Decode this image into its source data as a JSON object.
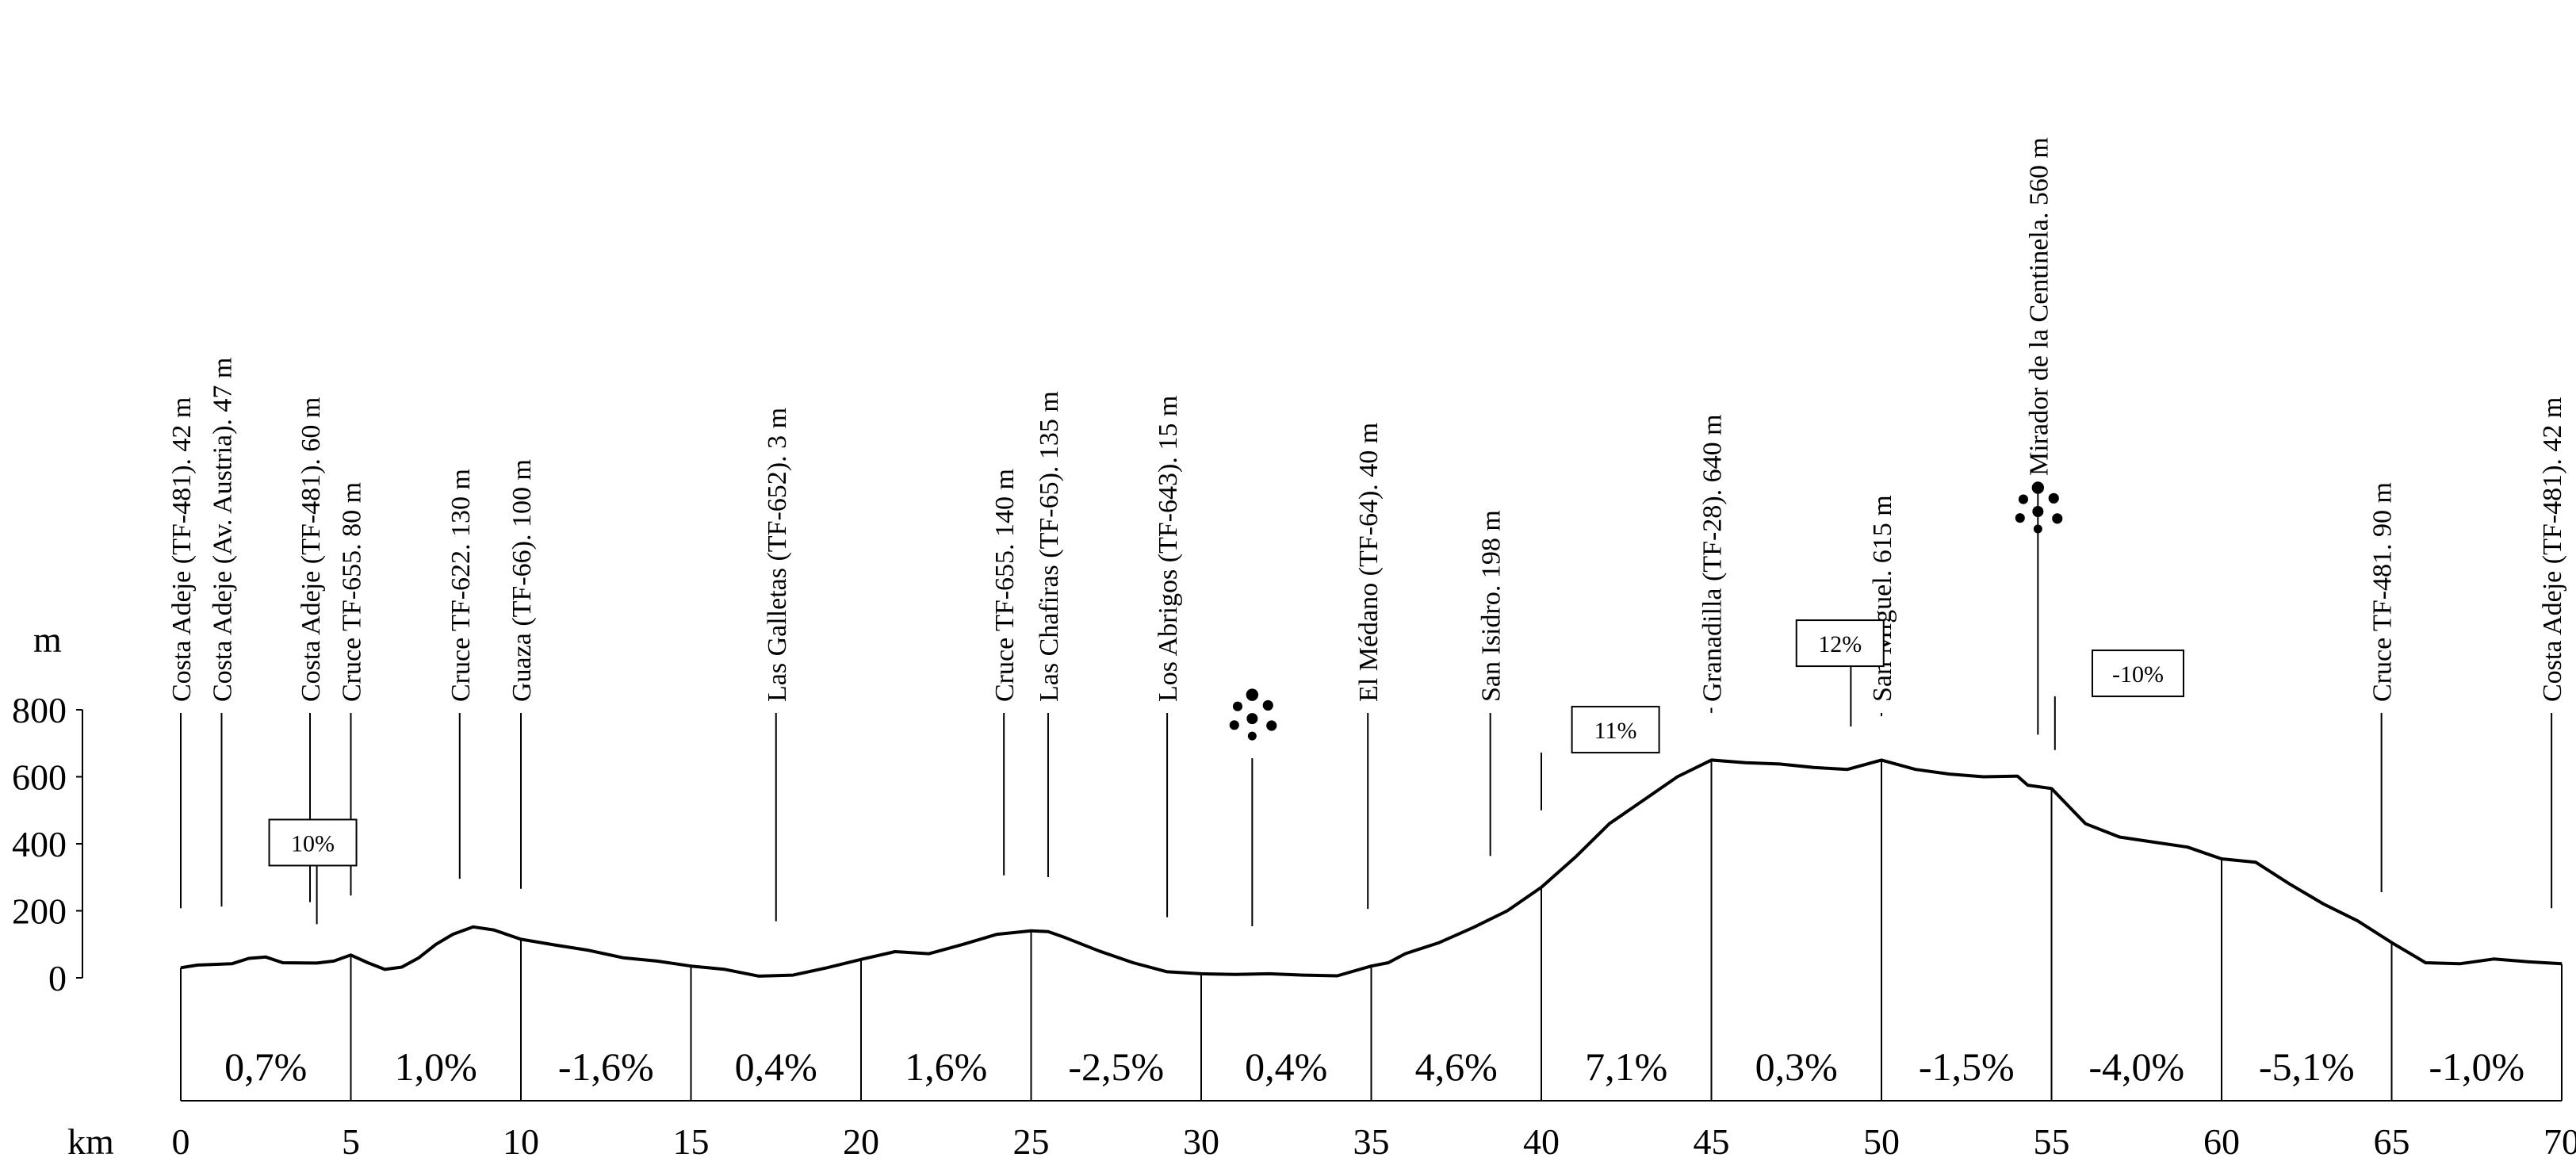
{
  "chart_data": {
    "type": "area",
    "y_unit": "m",
    "x_unit": "km",
    "xlim": [
      0,
      70
    ],
    "ylim": [
      0,
      800
    ],
    "x_ticks": [
      "0",
      "5",
      "10",
      "15",
      "20",
      "25",
      "30",
      "35",
      "40",
      "45",
      "50",
      "55",
      "60",
      "65",
      "70"
    ],
    "y_ticks": [
      "0",
      "200",
      "400",
      "600",
      "800"
    ],
    "elevation_profile": [
      [
        0,
        30
      ],
      [
        0.5,
        38
      ],
      [
        1.5,
        42
      ],
      [
        2,
        58
      ],
      [
        2.5,
        62
      ],
      [
        3,
        45
      ],
      [
        4,
        44
      ],
      [
        4.5,
        50
      ],
      [
        5,
        68
      ],
      [
        5.5,
        45
      ],
      [
        6,
        25
      ],
      [
        6.5,
        32
      ],
      [
        7,
        60
      ],
      [
        7.5,
        100
      ],
      [
        8,
        130
      ],
      [
        8.6,
        152
      ],
      [
        9.2,
        143
      ],
      [
        10,
        115
      ],
      [
        11,
        98
      ],
      [
        12,
        82
      ],
      [
        13,
        60
      ],
      [
        14,
        50
      ],
      [
        15,
        35
      ],
      [
        16,
        25
      ],
      [
        17,
        5
      ],
      [
        18,
        8
      ],
      [
        19,
        30
      ],
      [
        20,
        55
      ],
      [
        21,
        78
      ],
      [
        22,
        72
      ],
      [
        23,
        100
      ],
      [
        24,
        130
      ],
      [
        25,
        140
      ],
      [
        25.5,
        138
      ],
      [
        26,
        120
      ],
      [
        27,
        80
      ],
      [
        28,
        45
      ],
      [
        29,
        18
      ],
      [
        30,
        12
      ],
      [
        31,
        10
      ],
      [
        32,
        12
      ],
      [
        33,
        8
      ],
      [
        34,
        6
      ],
      [
        35,
        35
      ],
      [
        35.5,
        45
      ],
      [
        36,
        72
      ],
      [
        37,
        105
      ],
      [
        38,
        150
      ],
      [
        39,
        200
      ],
      [
        40,
        270
      ],
      [
        41,
        360
      ],
      [
        42,
        460
      ],
      [
        43,
        530
      ],
      [
        44,
        600
      ],
      [
        45,
        650
      ],
      [
        46,
        642
      ],
      [
        47,
        638
      ],
      [
        48,
        628
      ],
      [
        49,
        622
      ],
      [
        50,
        650
      ],
      [
        51,
        622
      ],
      [
        52,
        608
      ],
      [
        53,
        600
      ],
      [
        54,
        602
      ],
      [
        54.3,
        575
      ],
      [
        55,
        565
      ],
      [
        56,
        460
      ],
      [
        57,
        420
      ],
      [
        58,
        405
      ],
      [
        59,
        390
      ],
      [
        60,
        355
      ],
      [
        61,
        345
      ],
      [
        62,
        280
      ],
      [
        63,
        220
      ],
      [
        64,
        170
      ],
      [
        65,
        105
      ],
      [
        66,
        45
      ],
      [
        67,
        42
      ],
      [
        68,
        56
      ],
      [
        69,
        48
      ],
      [
        70,
        42
      ]
    ],
    "segments": [
      "0,7%",
      "1,0%",
      "-1,6%",
      "0,4%",
      "1,6%",
      "-2,5%",
      "0,4%",
      "4,6%",
      "7,1%",
      "0,3%",
      "-1,5%",
      "-4,0%",
      "-5,1%",
      "-1,0%"
    ],
    "waypoints": [
      {
        "km": 0,
        "elev": 42,
        "label": "Costa Adeje (TF-481). 42 m"
      },
      {
        "km": 1.2,
        "elev": 47,
        "label": "Costa Adeje (Av. Austria). 47 m"
      },
      {
        "km": 3.8,
        "elev": 60,
        "label": "Costa Adeje (TF-481). 60 m"
      },
      {
        "km": 5,
        "elev": 80,
        "label": "Cruce TF-655. 80 m"
      },
      {
        "km": 8.2,
        "elev": 130,
        "label": "Cruce TF-622. 130 m"
      },
      {
        "km": 10,
        "elev": 100,
        "label": "Guaza (TF-66). 100 m"
      },
      {
        "km": 17.5,
        "elev": 3,
        "label": "Las Galletas (TF-652). 3 m"
      },
      {
        "km": 24.2,
        "elev": 140,
        "label": "Cruce TF-655. 140 m"
      },
      {
        "km": 25.5,
        "elev": 135,
        "label": "Las Chafiras (TF-65). 135 m"
      },
      {
        "km": 29,
        "elev": 15,
        "label": "Los Abrigos (TF-643). 15 m"
      },
      {
        "km": 34.9,
        "elev": 40,
        "label": "El Médano (TF-64). 40 m"
      },
      {
        "km": 38.5,
        "elev": 198,
        "label": "San Isidro. 198 m"
      },
      {
        "km": 45,
        "elev": 640,
        "label": "Granadilla (TF-28). 640 m"
      },
      {
        "km": 50,
        "elev": 615,
        "label": "San Miguel. 615 m"
      },
      {
        "km": 54.6,
        "elev": 560,
        "label": "Mirador de la Centinela. 560 m",
        "viewpoint": true
      },
      {
        "km": 64.7,
        "elev": 90,
        "label": "Cruce TF-481. 90 m"
      },
      {
        "km": 69.7,
        "elev": 42,
        "label": "Costa Adeje (TF-481). 42 m"
      }
    ],
    "viewpoint_markers": [
      {
        "km": 31.5,
        "elev": 750
      }
    ],
    "callouts": [
      {
        "label": "10%",
        "km": 2.6,
        "elev": 335,
        "stem_km": 4.0,
        "stem_to_elev": 160
      },
      {
        "label": "11%",
        "km": 40.9,
        "elev": 672,
        "stem_km": 40.0,
        "stem_to_elev": 500
      },
      {
        "label": "12%",
        "km": 47.5,
        "elev": 930,
        "stem_km": 49.1,
        "stem_to_elev": 750
      },
      {
        "label": "-10%",
        "km": 56.2,
        "elev": 840,
        "stem_km": 55.1,
        "stem_to_elev": 680
      }
    ]
  }
}
